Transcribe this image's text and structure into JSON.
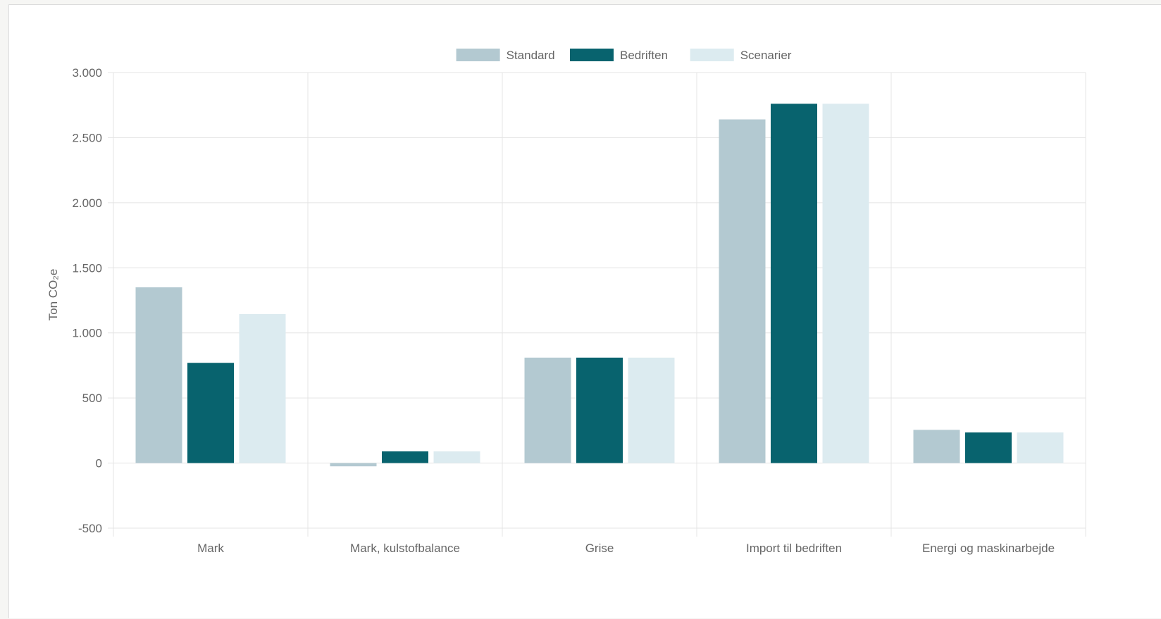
{
  "chart_data": {
    "type": "bar",
    "title": "",
    "xlabel": "",
    "ylabel": "Ton CO₂e",
    "ylim": [
      -500,
      3000
    ],
    "y_ticks": [
      3000,
      2500,
      2000,
      1500,
      1000,
      500,
      0,
      -500
    ],
    "y_tick_labels": [
      "3.000",
      "2.500",
      "2.000",
      "1.500",
      "1.000",
      "500",
      "0",
      "-500"
    ],
    "categories": [
      "Mark",
      "Mark, kulstofbalance",
      "Grise",
      "Import til bedriften",
      "Energi og maskinarbejde"
    ],
    "series": [
      {
        "name": "Standard",
        "color": "#b3c9d1",
        "values": [
          1350,
          -25,
          810,
          2640,
          255
        ]
      },
      {
        "name": "Bedriften",
        "color": "#08636e",
        "values": [
          770,
          90,
          810,
          2760,
          235
        ]
      },
      {
        "name": "Scenarier",
        "color": "#dcebf0",
        "values": [
          1145,
          90,
          810,
          2760,
          235
        ]
      }
    ],
    "legend_position": "top-center",
    "grid": true
  }
}
